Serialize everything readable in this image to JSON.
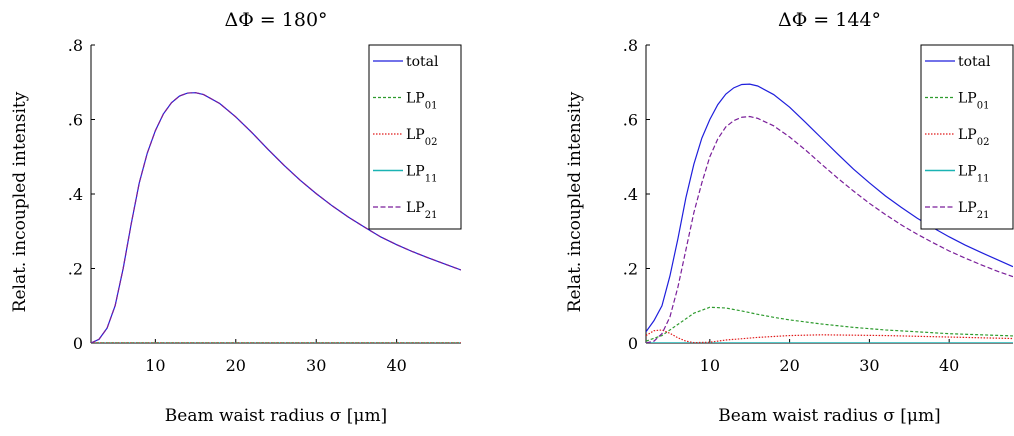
{
  "chart_data": [
    {
      "type": "line",
      "title": "ΔΦ = 180°",
      "xlabel": "Beam waist radius σ [μm]",
      "ylabel": "Relat. incoupled intensity",
      "xlim": [
        2,
        48
      ],
      "ylim": [
        0,
        0.8
      ],
      "xticks": [
        10,
        20,
        30,
        40
      ],
      "xtick_labels": [
        "10",
        "20",
        "30",
        "40"
      ],
      "yticks": [
        0,
        0.2,
        0.4,
        0.6,
        0.8
      ],
      "ytick_labels": [
        "0",
        ".2",
        ".4",
        ".6",
        ".8"
      ],
      "grid": false,
      "legend_position": "top-right",
      "series": [
        {
          "name": "total",
          "label_main": "total",
          "label_sub": "",
          "color": "#1f1fdc",
          "dash": "",
          "x": [
            2,
            3,
            4,
            5,
            6,
            7,
            8,
            9,
            10,
            11,
            12,
            13,
            14,
            15,
            16,
            18,
            20,
            22,
            24,
            26,
            28,
            30,
            32,
            34,
            36,
            38,
            40,
            42,
            44,
            46,
            48
          ],
          "y": [
            0.0,
            0.01,
            0.04,
            0.1,
            0.2,
            0.32,
            0.43,
            0.51,
            0.57,
            0.615,
            0.645,
            0.663,
            0.671,
            0.672,
            0.667,
            0.643,
            0.607,
            0.565,
            0.52,
            0.477,
            0.437,
            0.401,
            0.368,
            0.338,
            0.311,
            0.285,
            0.264,
            0.245,
            0.228,
            0.212,
            0.196
          ]
        },
        {
          "name": "LP01",
          "label_main": "LP",
          "label_sub": "01",
          "color": "#2e9b2e",
          "dash": "3,2",
          "x": [
            2,
            10,
            20,
            30,
            40,
            48
          ],
          "y": [
            0,
            0,
            0,
            0,
            0,
            0
          ]
        },
        {
          "name": "LP02",
          "label_main": "LP",
          "label_sub": "02",
          "color": "#e01a1a",
          "dash": "1.5,1.5",
          "x": [
            2,
            10,
            20,
            30,
            40,
            48
          ],
          "y": [
            0,
            0,
            0,
            0,
            0,
            0
          ]
        },
        {
          "name": "LP11",
          "label_main": "LP",
          "label_sub": "11",
          "color": "#1ab3b3",
          "dash": "",
          "x": [
            2,
            10,
            20,
            30,
            40,
            48
          ],
          "y": [
            0,
            0,
            0,
            0,
            0,
            0
          ]
        },
        {
          "name": "LP21",
          "label_main": "LP",
          "label_sub": "21",
          "color": "#7a1f9a",
          "dash": "5,2.5",
          "x": [
            2,
            3,
            4,
            5,
            6,
            7,
            8,
            9,
            10,
            11,
            12,
            13,
            14,
            15,
            16,
            18,
            20,
            22,
            24,
            26,
            28,
            30,
            32,
            34,
            36,
            38,
            40,
            42,
            44,
            46,
            48
          ],
          "y": [
            0.0,
            0.01,
            0.04,
            0.1,
            0.2,
            0.32,
            0.43,
            0.51,
            0.57,
            0.615,
            0.645,
            0.663,
            0.671,
            0.672,
            0.667,
            0.643,
            0.607,
            0.565,
            0.52,
            0.477,
            0.437,
            0.401,
            0.368,
            0.338,
            0.311,
            0.285,
            0.264,
            0.245,
            0.228,
            0.212,
            0.196
          ]
        }
      ]
    },
    {
      "type": "line",
      "title": "ΔΦ = 144°",
      "xlabel": "Beam waist radius σ [μm]",
      "ylabel": "Relat. incoupled intensity",
      "xlim": [
        2,
        48
      ],
      "ylim": [
        0,
        0.8
      ],
      "xticks": [
        10,
        20,
        30,
        40
      ],
      "xtick_labels": [
        "10",
        "20",
        "30",
        "40"
      ],
      "yticks": [
        0,
        0.2,
        0.4,
        0.6,
        0.8
      ],
      "ytick_labels": [
        "0",
        ".2",
        ".4",
        ".6",
        ".8"
      ],
      "grid": false,
      "legend_position": "top-right",
      "series": [
        {
          "name": "total",
          "label_main": "total",
          "label_sub": "",
          "color": "#1f1fdc",
          "dash": "",
          "x": [
            2,
            3,
            4,
            5,
            6,
            7,
            8,
            9,
            10,
            11,
            12,
            13,
            14,
            15,
            16,
            18,
            20,
            22,
            24,
            26,
            28,
            30,
            32,
            34,
            36,
            38,
            40,
            42,
            44,
            46,
            48
          ],
          "y": [
            0.03,
            0.06,
            0.1,
            0.18,
            0.28,
            0.39,
            0.48,
            0.55,
            0.6,
            0.64,
            0.668,
            0.685,
            0.694,
            0.695,
            0.69,
            0.667,
            0.633,
            0.592,
            0.55,
            0.508,
            0.467,
            0.43,
            0.395,
            0.364,
            0.335,
            0.309,
            0.285,
            0.263,
            0.243,
            0.224,
            0.205
          ]
        },
        {
          "name": "LP01",
          "label_main": "LP",
          "label_sub": "01",
          "color": "#2e9b2e",
          "dash": "3,2",
          "x": [
            2,
            4,
            6,
            8,
            10,
            12,
            14,
            16,
            18,
            20,
            24,
            28,
            32,
            36,
            40,
            44,
            48
          ],
          "y": [
            0.005,
            0.02,
            0.05,
            0.08,
            0.096,
            0.094,
            0.086,
            0.077,
            0.069,
            0.062,
            0.051,
            0.042,
            0.035,
            0.03,
            0.025,
            0.022,
            0.019
          ]
        },
        {
          "name": "LP02",
          "label_main": "LP",
          "label_sub": "02",
          "color": "#e01a1a",
          "dash": "1.5,1.5",
          "x": [
            2,
            3,
            4,
            5,
            6,
            7,
            8,
            10,
            12,
            16,
            20,
            24,
            28,
            32,
            36,
            40,
            44,
            48
          ],
          "y": [
            0.02,
            0.033,
            0.035,
            0.026,
            0.014,
            0.005,
            0.001,
            0.002,
            0.008,
            0.015,
            0.02,
            0.022,
            0.021,
            0.02,
            0.018,
            0.016,
            0.014,
            0.012
          ]
        },
        {
          "name": "LP11",
          "label_main": "LP",
          "label_sub": "11",
          "color": "#1ab3b3",
          "dash": "",
          "x": [
            2,
            10,
            20,
            30,
            40,
            48
          ],
          "y": [
            0,
            0,
            0,
            0,
            0,
            0
          ]
        },
        {
          "name": "LP21",
          "label_main": "LP",
          "label_sub": "21",
          "color": "#7a1f9a",
          "dash": "5,2.5",
          "x": [
            2,
            3,
            4,
            5,
            6,
            7,
            8,
            9,
            10,
            11,
            12,
            13,
            14,
            15,
            16,
            18,
            20,
            22,
            24,
            26,
            28,
            30,
            32,
            34,
            36,
            38,
            40,
            42,
            44,
            46,
            48
          ],
          "y": [
            0.0,
            0.005,
            0.025,
            0.07,
            0.15,
            0.25,
            0.35,
            0.43,
            0.5,
            0.548,
            0.58,
            0.597,
            0.606,
            0.608,
            0.603,
            0.583,
            0.553,
            0.518,
            0.48,
            0.443,
            0.408,
            0.375,
            0.345,
            0.317,
            0.292,
            0.269,
            0.247,
            0.228,
            0.21,
            0.193,
            0.178
          ]
        }
      ]
    }
  ]
}
